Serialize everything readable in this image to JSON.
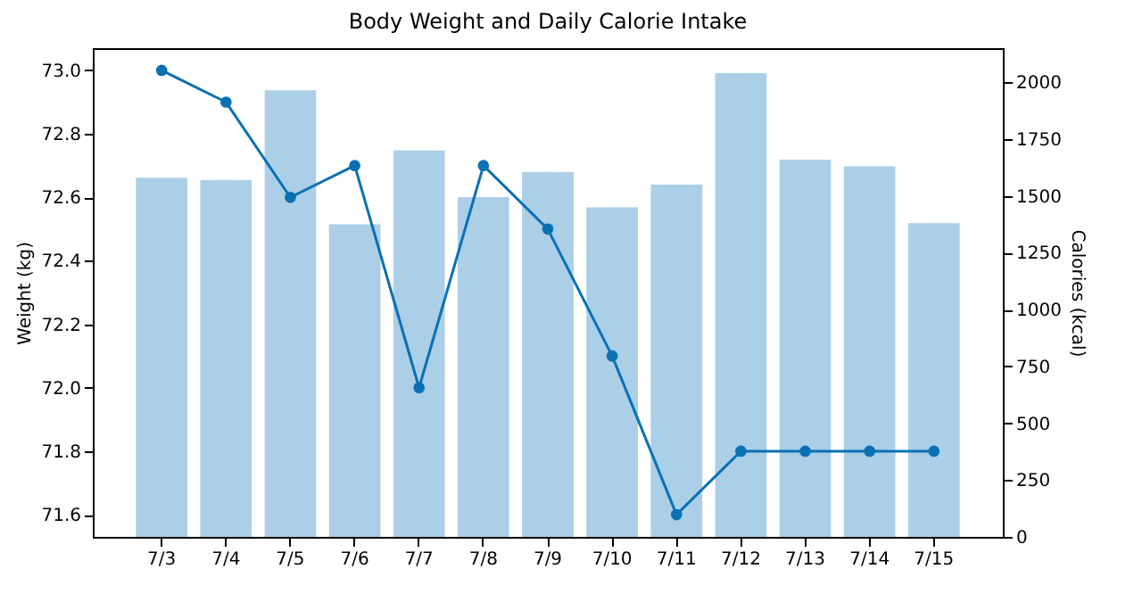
{
  "chart_data": {
    "type": "line",
    "title": "Body Weight and Daily Calorie Intake",
    "ylabel": "Weight (kg)",
    "y2label": "Calories (kcal)",
    "categories": [
      "7/3",
      "7/4",
      "7/5",
      "7/6",
      "7/7",
      "7/8",
      "7/9",
      "7/10",
      "7/11",
      "7/12",
      "7/13",
      "7/14",
      "7/15"
    ],
    "series": [
      {
        "axis": "y",
        "color": "#0a70b4",
        "marker": "circle",
        "values": [
          73.0,
          72.9,
          72.6,
          72.7,
          72.0,
          72.7,
          72.5,
          72.1,
          71.6,
          71.8,
          71.8,
          71.8,
          71.8
        ]
      },
      {
        "type": "bar",
        "axis": "y2",
        "color": "#abcfe7",
        "values": [
          1580,
          1570,
          1965,
          1375,
          1700,
          1495,
          1605,
          1450,
          1550,
          2040,
          1660,
          1630,
          1380
        ]
      }
    ],
    "ylim": [
      71.53,
      73.07
    ],
    "yticks": [
      71.6,
      71.8,
      {
        "value": 72,
        "label": "72.0"
      },
      72.2,
      72.4,
      72.6,
      72.8,
      {
        "value": 73,
        "label": "73.0"
      }
    ],
    "y2lim": [
      0,
      2150
    ],
    "y2ticks": [
      0,
      250,
      500,
      750,
      1000,
      1250,
      1500,
      1750,
      2000
    ],
    "grid": false
  }
}
